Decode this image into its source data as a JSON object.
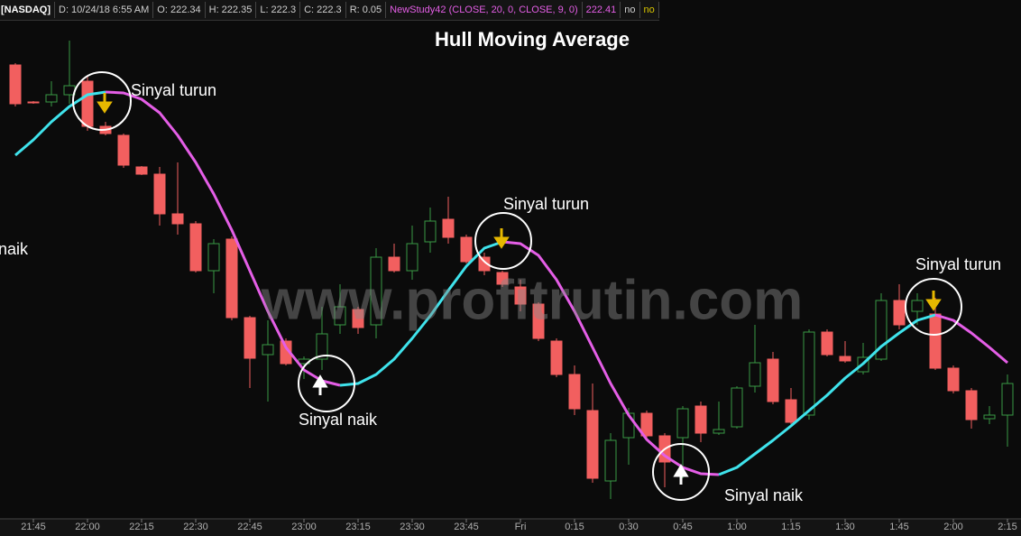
{
  "header": {
    "items": [
      "[NASDAQ]",
      "D: 10/24/18 6:55 AM",
      "O: 222.34",
      "H: 222.35",
      "L: 222.3",
      "C: 222.3",
      "R: 0.05",
      "NewStudy42 (CLOSE, 20, 0, CLOSE, 9, 0)",
      "222.41",
      "no",
      "no"
    ]
  },
  "chart_data": {
    "type": "candlestick",
    "title": "Hull Moving Average",
    "watermark": "www.profitrutin.com",
    "categories": [
      null,
      "21:45",
      null,
      null,
      "22:00",
      null,
      null,
      "22:15",
      null,
      null,
      "22:30",
      null,
      null,
      "22:45",
      null,
      null,
      "23:00",
      null,
      null,
      "23:15",
      null,
      null,
      "23:30",
      null,
      null,
      "23:45",
      null,
      null,
      "Fri",
      null,
      null,
      "0:15",
      null,
      null,
      "0:30",
      null,
      null,
      "0:45",
      null,
      null,
      "1:00",
      null,
      null,
      "1:15",
      null,
      null,
      "1:30",
      null,
      null,
      "1:45",
      null,
      null,
      "2:00",
      null,
      null,
      "2:15"
    ],
    "open": [
      224.015,
      223.81,
      223.81,
      223.85,
      223.925,
      223.675,
      223.625,
      223.45,
      223.41,
      223.19,
      223.135,
      222.875,
      223.05,
      222.615,
      222.41,
      222.485,
      222.36,
      222.385,
      222.575,
      222.66,
      222.575,
      222.95,
      222.875,
      223.035,
      223.16,
      223.06,
      222.95,
      222.865,
      222.785,
      222.69,
      222.485,
      222.3,
      222.1,
      221.71,
      221.95,
      222.085,
      221.96,
      221.95,
      222.125,
      221.975,
      222.01,
      222.235,
      222.385,
      222.16,
      222.075,
      222.535,
      222.4,
      222.315,
      222.385,
      222.71,
      222.65,
      222.635,
      222.335,
      222.21,
      222.055,
      222.075
    ],
    "high": [
      224.025,
      223.815,
      223.925,
      224.15,
      223.95,
      223.7,
      223.635,
      223.455,
      223.45,
      223.475,
      223.15,
      223.05,
      223.065,
      222.625,
      222.6,
      222.5,
      222.4,
      222.675,
      222.8,
      222.675,
      223.0,
      223.025,
      223.125,
      223.225,
      223.285,
      223.075,
      222.975,
      222.875,
      222.825,
      222.7,
      222.5,
      222.35,
      222.25,
      221.975,
      222.115,
      222.1,
      221.975,
      222.125,
      222.15,
      222.15,
      222.235,
      222.575,
      222.425,
      222.225,
      222.55,
      222.55,
      222.485,
      222.475,
      222.75,
      222.8,
      222.75,
      222.725,
      222.35,
      222.225,
      222.125,
      222.3
    ],
    "low": [
      223.785,
      223.8,
      223.785,
      223.8,
      223.65,
      223.625,
      223.445,
      223.405,
      223.125,
      223.075,
      222.865,
      222.75,
      222.6,
      222.225,
      222.15,
      222.35,
      222.275,
      222.325,
      222.525,
      222.525,
      222.5,
      222.865,
      222.825,
      222.975,
      223.025,
      222.915,
      222.85,
      222.785,
      222.65,
      222.485,
      222.285,
      222.075,
      221.7,
      221.61,
      221.8,
      221.945,
      221.675,
      221.725,
      221.925,
      221.965,
      222.0,
      222.2,
      222.135,
      222.025,
      222.05,
      222.4,
      222.365,
      222.3,
      222.375,
      222.55,
      222.575,
      222.325,
      222.195,
      222.0,
      222.025,
      221.9
    ],
    "close": [
      223.8,
      223.805,
      223.85,
      223.9,
      223.675,
      223.635,
      223.46,
      223.41,
      223.19,
      223.135,
      222.875,
      223.025,
      222.615,
      222.39,
      222.465,
      222.36,
      222.385,
      222.525,
      222.675,
      222.56,
      222.95,
      222.875,
      223.025,
      223.15,
      223.06,
      222.925,
      222.875,
      222.8,
      222.69,
      222.5,
      222.3,
      222.11,
      221.725,
      221.935,
      222.085,
      221.96,
      221.815,
      222.11,
      221.975,
      221.995,
      222.225,
      222.365,
      222.15,
      222.035,
      222.535,
      222.41,
      222.375,
      222.395,
      222.71,
      222.575,
      222.71,
      222.335,
      222.21,
      222.05,
      222.075,
      222.25
    ],
    "up_color": "#3a9a45",
    "down_color": "#f25f5f",
    "hull": {
      "values": [
        223.515,
        223.6,
        223.7,
        223.785,
        223.85,
        223.865,
        223.86,
        223.825,
        223.75,
        223.625,
        223.475,
        223.3,
        223.1,
        222.875,
        222.65,
        222.45,
        222.325,
        222.265,
        222.24,
        222.25,
        222.3,
        222.385,
        222.5,
        222.625,
        222.765,
        222.9,
        223.0,
        223.035,
        223.025,
        222.96,
        222.825,
        222.65,
        222.45,
        222.25,
        222.075,
        221.94,
        221.85,
        221.785,
        221.75,
        221.745,
        221.785,
        221.86,
        221.935,
        222.015,
        222.1,
        222.185,
        222.28,
        222.36,
        222.455,
        222.53,
        222.6,
        222.63,
        222.6,
        222.53,
        222.45,
        222.365
      ],
      "up_color": "#3fe3ec",
      "down_color": "#e45ee6"
    },
    "ylim": [
      221.5,
      224.265
    ],
    "annotations": [
      {
        "text": "Sinyal turun"
      },
      {
        "text": "Sinyal naik"
      },
      {
        "text": "Sinyal turun"
      },
      {
        "text": "Sinyal naik"
      },
      {
        "text": "Sinyal turun"
      },
      {
        "text": "naik"
      }
    ]
  }
}
